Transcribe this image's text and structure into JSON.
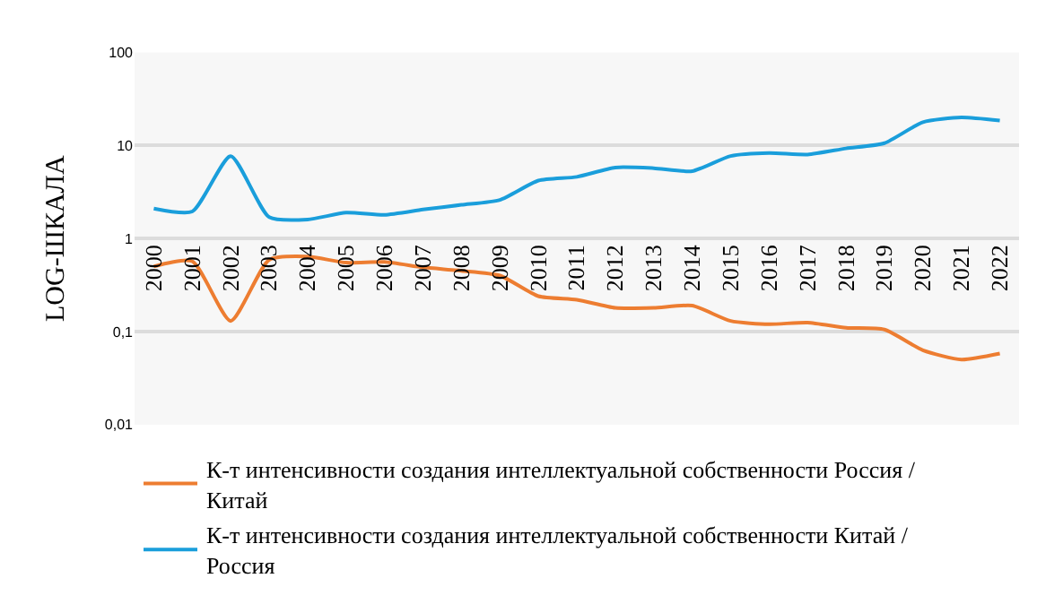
{
  "chart_data": {
    "type": "line",
    "ylabel": "LOG-ШКАЛА",
    "categories": [
      "2000",
      "2001",
      "2002",
      "2003",
      "2004",
      "2005",
      "2006",
      "2007",
      "2008",
      "2009",
      "2010",
      "2011",
      "2012",
      "2013",
      "2014",
      "2015",
      "2016",
      "2017",
      "2018",
      "2019",
      "2020",
      "2021",
      "2022"
    ],
    "series": [
      {
        "name": "К-т интенсивности создания интеллектуальной собственности Россия / Китай",
        "color": "#ed7d31",
        "values": [
          0.5,
          0.57,
          0.13,
          0.59,
          0.64,
          0.55,
          0.56,
          0.49,
          0.45,
          0.4,
          0.24,
          0.22,
          0.18,
          0.18,
          0.19,
          0.13,
          0.12,
          0.125,
          0.11,
          0.105,
          0.063,
          0.05,
          0.058
        ]
      },
      {
        "name": "К-т интенсивности создания интеллектуальной собственности Китай / Россия",
        "color": "#1a9edb",
        "values": [
          2.1,
          1.95,
          7.7,
          1.7,
          1.6,
          1.9,
          1.8,
          2.05,
          2.3,
          2.6,
          4.2,
          4.6,
          5.8,
          5.7,
          5.3,
          7.7,
          8.3,
          8.0,
          9.3,
          10.6,
          17.8,
          20,
          18.5
        ]
      }
    ],
    "log": true,
    "ylim": [
      0.01,
      100
    ],
    "yticks": [
      {
        "value": 0.01,
        "label": "0,01"
      },
      {
        "value": 0.1,
        "label": "0,1"
      },
      1,
      10,
      100
    ],
    "grid": "y",
    "legend": "bottom",
    "marker": "none",
    "line_style": "solid"
  }
}
